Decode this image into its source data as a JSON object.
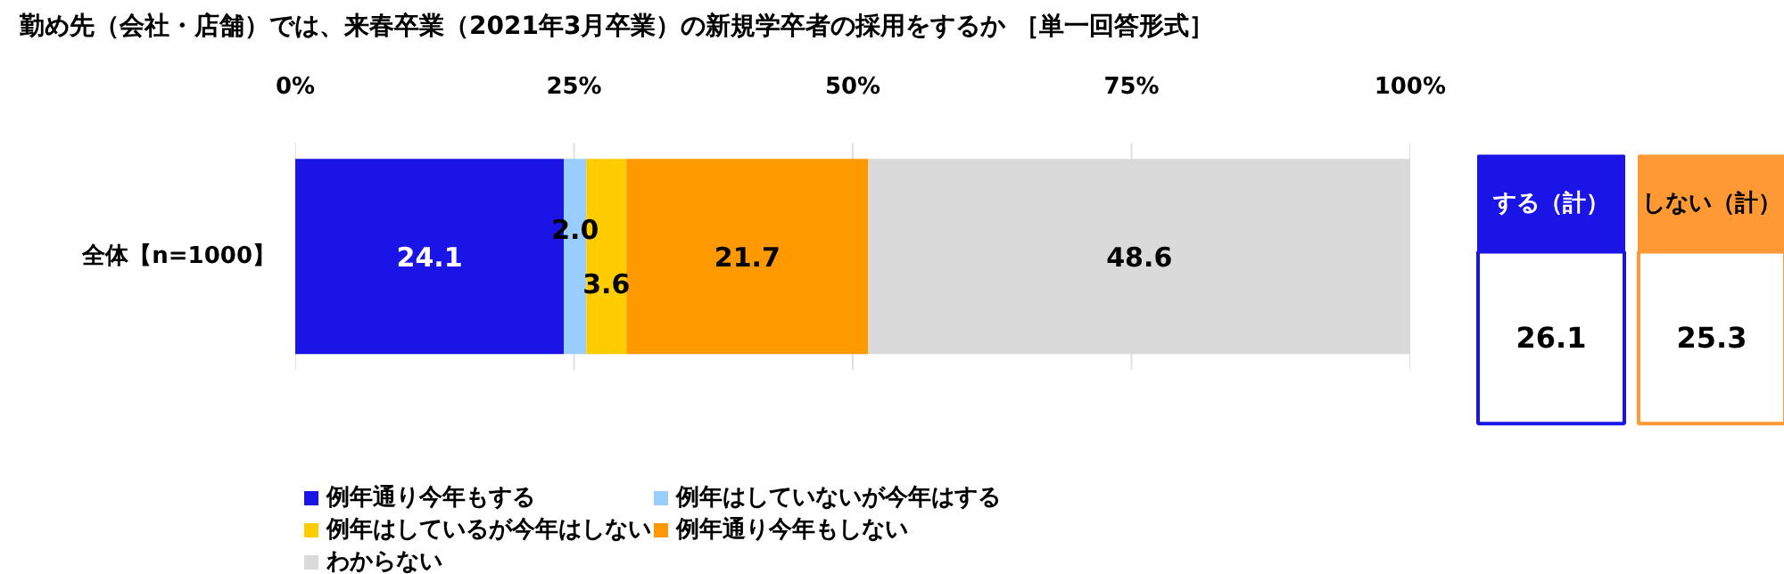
{
  "chart_data": {
    "type": "bar",
    "orientation": "horizontal",
    "stacked": true,
    "title": "勤め先（会社・店舗）では、来春卒業（2021年3月卒業）の新規学卒者の採用をするか ［単一回答形式］",
    "categories": [
      "全体【n=1000】"
    ],
    "series": [
      {
        "name": "例年通り今年もする",
        "color": "#1a14e6",
        "values": [
          24.1
        ],
        "value_labels": [
          "24.1"
        ]
      },
      {
        "name": "例年はしていないが今年はする",
        "color": "#99ccff",
        "values": [
          2.0
        ],
        "value_labels": [
          "2.0"
        ]
      },
      {
        "name": "例年はしているが今年はしない",
        "color": "#ffcc00",
        "values": [
          3.6
        ],
        "value_labels": [
          "3.6"
        ]
      },
      {
        "name": "例年通り今年もしない",
        "color": "#ff9900",
        "values": [
          21.7
        ],
        "value_labels": [
          "21.7"
        ]
      },
      {
        "name": "わからない",
        "color": "#dadada",
        "values": [
          48.6
        ],
        "value_labels": [
          "48.6"
        ]
      }
    ],
    "xlim": [
      0,
      100
    ],
    "xticks": [
      {
        "value": 0,
        "label": "0%"
      },
      {
        "value": 25,
        "label": "25%"
      },
      {
        "value": 50,
        "label": "50%"
      },
      {
        "value": 75,
        "label": "75%"
      },
      {
        "value": 100,
        "label": "100%"
      }
    ],
    "grid": "x",
    "legend": "bottom",
    "annotations": [
      "する（計）",
      "26.1",
      "しない（計）",
      "25.3"
    ]
  }
}
